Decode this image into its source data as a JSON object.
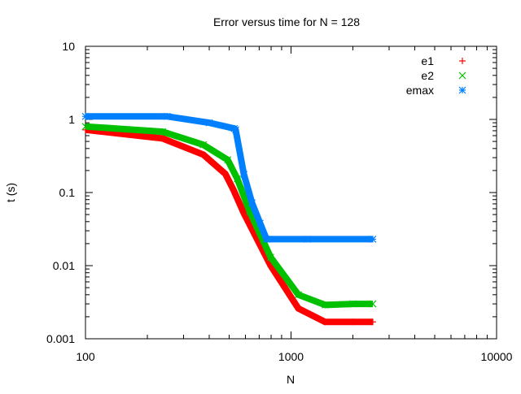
{
  "chart_data": {
    "type": "scatter",
    "title": "Error versus time for N = 128",
    "xlabel": "N",
    "ylabel": "t (s)",
    "xscale": "log",
    "yscale": "log",
    "xlim": [
      100,
      10000
    ],
    "ylim": [
      0.001,
      10
    ],
    "xticks": [
      "100",
      "1000",
      "10000"
    ],
    "yticks": [
      "0.001",
      "0.01",
      "0.1",
      "1",
      "10"
    ],
    "grid": false,
    "legend_position": "top-right",
    "series": [
      {
        "name": "e1",
        "color": "#ff0000",
        "marker": "plus",
        "x": [
          100,
          237,
          374,
          479,
          524,
          590,
          796,
          1086,
          1466,
          2000,
          2500
        ],
        "y": [
          0.72,
          0.55,
          0.33,
          0.18,
          0.11,
          0.052,
          0.01,
          0.0026,
          0.0017,
          0.0017,
          0.0017
        ]
      },
      {
        "name": "e2",
        "color": "#00c000",
        "marker": "cross",
        "x": [
          100,
          237,
          374,
          492,
          548,
          629,
          796,
          1086,
          1466,
          2000,
          2500
        ],
        "y": [
          0.8,
          0.68,
          0.45,
          0.28,
          0.154,
          0.055,
          0.013,
          0.004,
          0.0029,
          0.003,
          0.003
        ]
      },
      {
        "name": "emax",
        "color": "#0080ff",
        "marker": "star",
        "x": [
          100,
          250,
          400,
          530,
          538,
          590,
          646,
          707,
          760,
          1200,
          2500
        ],
        "y": [
          1.1,
          1.1,
          0.9,
          0.75,
          0.72,
          0.177,
          0.072,
          0.038,
          0.023,
          0.023,
          0.023
        ]
      }
    ]
  }
}
